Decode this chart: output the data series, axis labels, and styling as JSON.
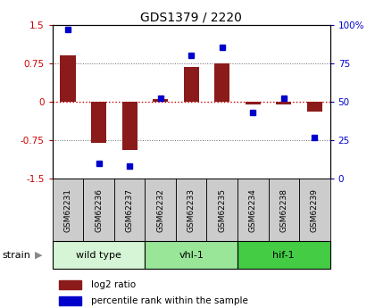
{
  "title": "GDS1379 / 2220",
  "samples": [
    "GSM62231",
    "GSM62236",
    "GSM62237",
    "GSM62232",
    "GSM62233",
    "GSM62235",
    "GSM62234",
    "GSM62238",
    "GSM62239"
  ],
  "log2_ratio": [
    0.9,
    -0.8,
    -0.95,
    0.05,
    0.67,
    0.75,
    -0.05,
    -0.05,
    -0.2
  ],
  "percentile_rank": [
    97,
    10,
    8,
    52,
    80,
    85,
    43,
    52,
    27
  ],
  "groups": [
    {
      "label": "wild type",
      "start": 0,
      "end": 3,
      "color": "#d6f5d6"
    },
    {
      "label": "vhl-1",
      "start": 3,
      "end": 6,
      "color": "#99e699"
    },
    {
      "label": "hif-1",
      "start": 6,
      "end": 9,
      "color": "#44cc44"
    }
  ],
  "ylim_left": [
    -1.5,
    1.5
  ],
  "ylim_right": [
    0,
    100
  ],
  "yticks_left": [
    -1.5,
    -0.75,
    0,
    0.75,
    1.5
  ],
  "ytick_labels_left": [
    "-1.5",
    "-0.75",
    "0",
    "0.75",
    "1.5"
  ],
  "yticks_right": [
    0,
    25,
    50,
    75,
    100
  ],
  "ytick_labels_right": [
    "0",
    "25",
    "50",
    "75",
    "100%"
  ],
  "bar_color": "#8b1a1a",
  "dot_color": "#0000cc",
  "hline_color": "#cc0000",
  "grid_color": "#666666",
  "sample_box_color": "#cccccc",
  "strain_label": "strain",
  "legend_items": [
    {
      "label": "log2 ratio",
      "color": "#8b1a1a"
    },
    {
      "label": "percentile rank within the sample",
      "color": "#0000cc"
    }
  ]
}
